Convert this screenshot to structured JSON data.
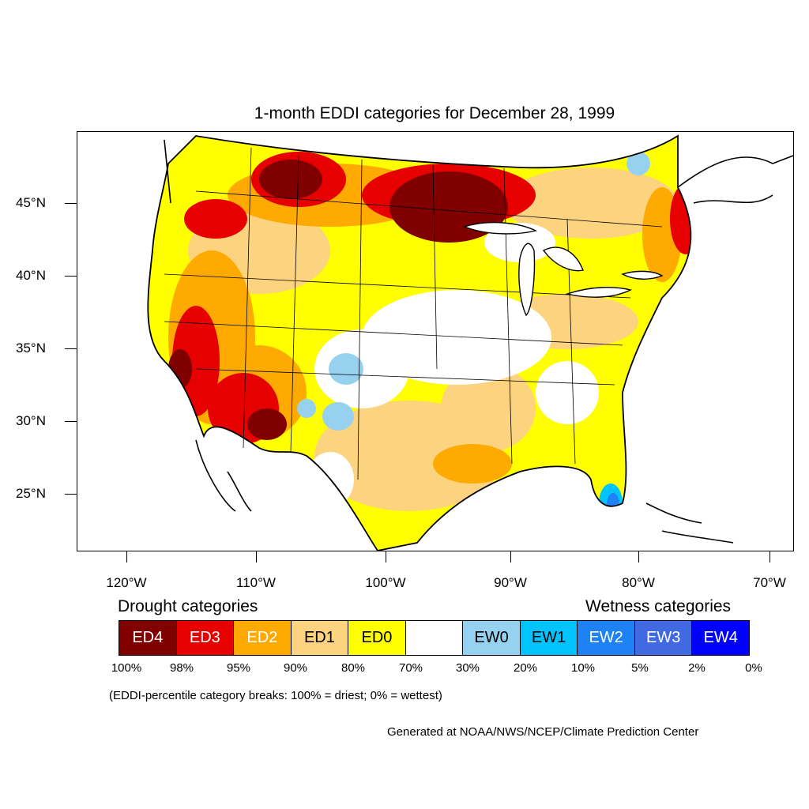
{
  "title": "1-month EDDI categories for December 28, 1999",
  "map": {
    "projection": "lambert-conformal",
    "region": "contiguous United States",
    "lat_labels": [
      "45°N",
      "40°N",
      "35°N",
      "30°N",
      "25°N"
    ],
    "lon_labels": [
      "120°W",
      "110°W",
      "100°W",
      "90°W",
      "80°W",
      "70°W"
    ],
    "regions": [
      {
        "area": "Northern Minnesota / western Great Lakes",
        "category": "ED4"
      },
      {
        "area": "Northern Idaho / western Montana",
        "category": "ED4"
      },
      {
        "area": "Southern California / southern Nevada",
        "category": "ED3"
      },
      {
        "area": "Arizona",
        "category": "ED3"
      },
      {
        "area": "Northern New England",
        "category": "ED3"
      },
      {
        "area": "Northern Plains",
        "category": "ED2"
      },
      {
        "area": "New Mexico / Colorado",
        "category": "EW0"
      },
      {
        "area": "South Florida",
        "category": "EW2"
      }
    ]
  },
  "legend": {
    "drought_title": "Drought categories",
    "wetness_title": "Wetness categories",
    "categories": [
      {
        "label": "ED4",
        "color": "#800000",
        "text_color": "#ffffff"
      },
      {
        "label": "ED3",
        "color": "#e60000",
        "text_color": "#ffffff"
      },
      {
        "label": "ED2",
        "color": "#ffaa00",
        "text_color": "#ffffff"
      },
      {
        "label": "ED1",
        "color": "#fcd37f",
        "text_color": "#000000"
      },
      {
        "label": "ED0",
        "color": "#ffff00",
        "text_color": "#000000"
      },
      {
        "label": "",
        "color": "#ffffff",
        "text_color": "#000000"
      },
      {
        "label": "EW0",
        "color": "#96d2f0",
        "text_color": "#000000"
      },
      {
        "label": "EW1",
        "color": "#00c3ff",
        "text_color": "#000000"
      },
      {
        "label": "EW2",
        "color": "#1e82f5",
        "text_color": "#ffffff"
      },
      {
        "label": "EW3",
        "color": "#4169e1",
        "text_color": "#ffffff"
      },
      {
        "label": "EW4",
        "color": "#0000ff",
        "text_color": "#ffffff"
      }
    ],
    "breaks": [
      "100%",
      "98%",
      "95%",
      "90%",
      "80%",
      "70%",
      "30%",
      "20%",
      "10%",
      "5%",
      "2%",
      "0%"
    ],
    "note": "(EDDI-percentile category breaks: 100% = driest; 0% = wettest)"
  },
  "credit": "Generated at NOAA/NWS/NCEP/Climate Prediction Center"
}
